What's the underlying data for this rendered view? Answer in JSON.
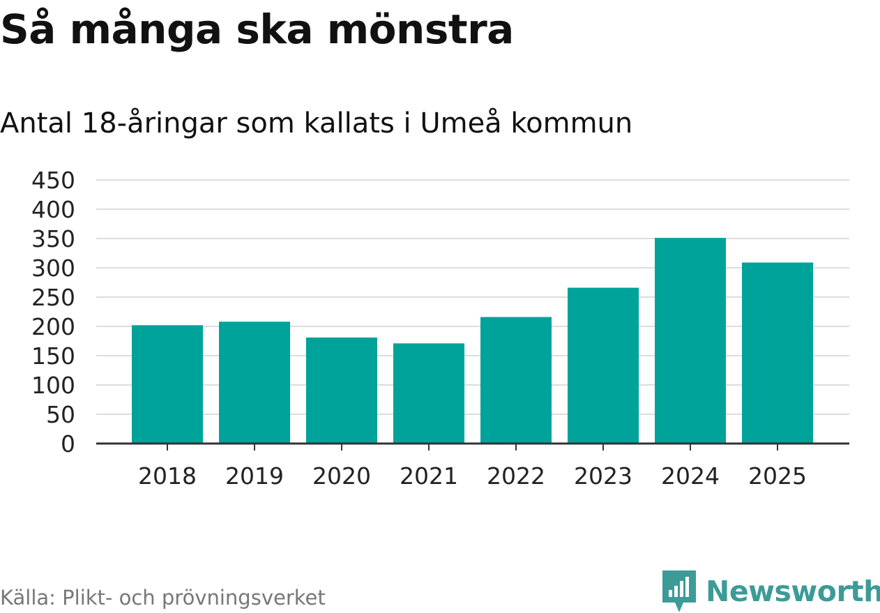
{
  "title": "Så många ska mönstra",
  "subtitle": "Antal 18-åringar som kallats i Umeå kommun",
  "source": "Källa: Plikt- och prövningsverket",
  "brand": {
    "name": "Newsworthy",
    "icon": "newsworthy-logo-icon",
    "color": "#3c9b97"
  },
  "colors": {
    "bar": "#00a39a",
    "grid": "#dddddd",
    "axis": "#333333",
    "tick_text": "#222222"
  },
  "chart_data": {
    "type": "bar",
    "title": "Så många ska mönstra",
    "subtitle": "Antal 18-åringar som kallats i Umeå kommun",
    "xlabel": "",
    "ylabel": "",
    "categories": [
      "2018",
      "2019",
      "2020",
      "2021",
      "2022",
      "2023",
      "2024",
      "2025"
    ],
    "series": [
      {
        "name": "Antal 18-åringar som kallats",
        "values": [
          202,
          208,
          181,
          171,
          216,
          266,
          351,
          309
        ]
      }
    ],
    "ylim": [
      0,
      450
    ],
    "yticks": [
      0,
      50,
      100,
      150,
      200,
      250,
      300,
      350,
      400,
      450
    ],
    "grid": true,
    "legend": "none"
  }
}
